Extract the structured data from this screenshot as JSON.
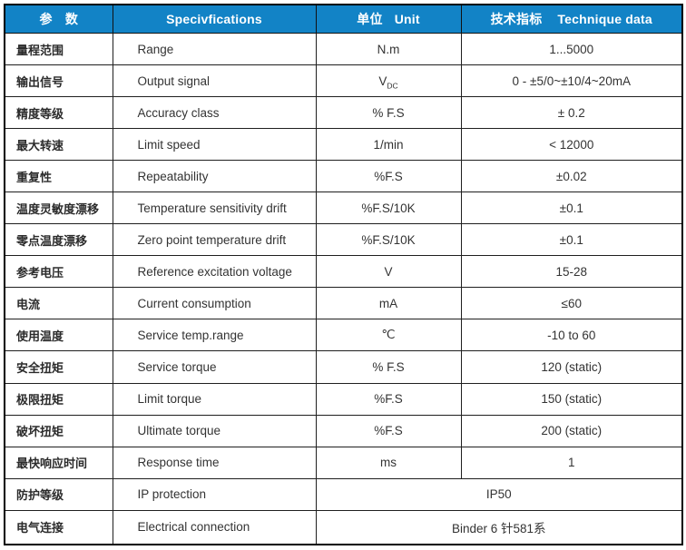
{
  "header": {
    "param": "参　数",
    "spec": "Specivfications",
    "unit_cn": "单位",
    "unit_en": "Unit",
    "tech_cn": "技术指标",
    "tech_en": "Technique data"
  },
  "colors": {
    "header_bg": "#1283C6",
    "header_text": "#FFFFFF",
    "border": "#1F1F1F",
    "body_text": "#333333"
  },
  "rows": [
    {
      "cn": "量程范围",
      "en": "Range",
      "unit": "N.m",
      "value": "1...5000"
    },
    {
      "cn": "输出信号",
      "en": "Output signal",
      "unit": "V",
      "unit_sub": "DC",
      "value": "0 - ±5/0~±10/4~20mA"
    },
    {
      "cn": "精度等级",
      "en": "Accuracy class",
      "unit": "% F.S",
      "value": "± 0.2"
    },
    {
      "cn": "最大转速",
      "en": "Limit speed",
      "unit": "1/min",
      "value": "< 12000"
    },
    {
      "cn": "重复性",
      "en": "Repeatability",
      "unit": "%F.S",
      "value": "±0.02"
    },
    {
      "cn": "温度灵敏度漂移",
      "en": "Temperature sensitivity drift",
      "unit": "%F.S/10K",
      "value": "±0.1"
    },
    {
      "cn": "零点温度漂移",
      "en": "Zero point temperature drift",
      "unit": "%F.S/10K",
      "value": "±0.1"
    },
    {
      "cn": "参考电压",
      "en": "Reference excitation voltage",
      "unit": "V",
      "value": "15-28"
    },
    {
      "cn": "电流",
      "en": "Current consumption",
      "unit": "mA",
      "value": "≤60"
    },
    {
      "cn": "使用温度",
      "en": "Service temp.range",
      "unit": "℃",
      "value": "-10 to 60"
    },
    {
      "cn": "安全扭矩",
      "en": "Service torque",
      "unit": "% F.S",
      "value": "120 (static)"
    },
    {
      "cn": "极限扭矩",
      "en": "Limit torque",
      "unit": "%F.S",
      "value": "150 (static)"
    },
    {
      "cn": "破坏扭矩",
      "en": "Ultimate torque",
      "unit": "%F.S",
      "value": "200 (static)"
    },
    {
      "cn": "最快响应时间",
      "en": "Response time",
      "unit": "ms",
      "value": "1"
    },
    {
      "cn": "防护等级",
      "en": "IP protection",
      "merged": true,
      "value": "IP50"
    },
    {
      "cn": "电气连接",
      "en": "Electrical connection",
      "merged": true,
      "value": "Binder 6 针581系"
    }
  ]
}
